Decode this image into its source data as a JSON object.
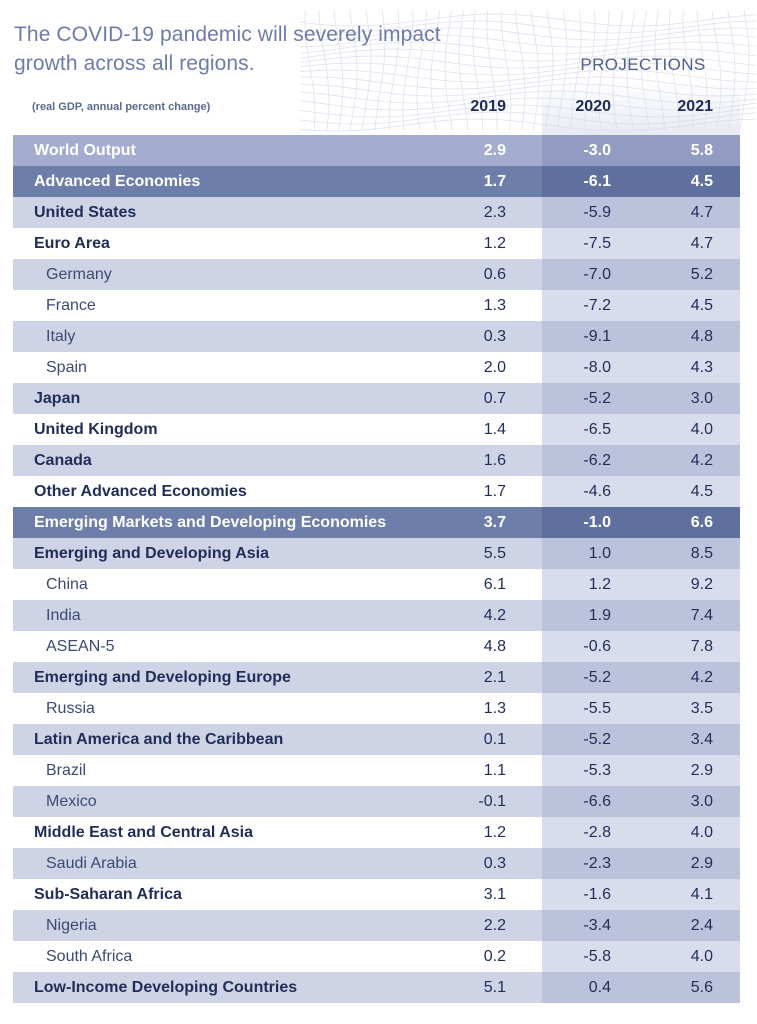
{
  "header": {
    "title_line1": "The COVID-19 pandemic will severely impact",
    "title_line2": "growth across all regions.",
    "projections_label": "PROJECTIONS",
    "unit_label": "(real GDP, annual percent change)",
    "years": [
      "2019",
      "2020",
      "2021"
    ]
  },
  "chart_data": {
    "type": "table",
    "title": "The COVID-19 pandemic will severely impact growth across all regions.",
    "subtitle": "(real GDP, annual percent change)",
    "columns": [
      "2019",
      "2020",
      "2021"
    ],
    "column_group": {
      "label": "PROJECTIONS",
      "columns": [
        "2020",
        "2021"
      ]
    },
    "rows": [
      {
        "name": "World Output",
        "level": 0,
        "style": "mid",
        "values": [
          "2.9",
          "-3.0",
          "5.8"
        ]
      },
      {
        "name": "Advanced Economies",
        "level": 0,
        "style": "dark",
        "values": [
          "1.7",
          "-6.1",
          "4.5"
        ]
      },
      {
        "name": "United States",
        "level": 0,
        "style": "light",
        "values": [
          "2.3",
          "-5.9",
          "4.7"
        ]
      },
      {
        "name": "Euro Area",
        "level": 0,
        "style": "white",
        "values": [
          "1.2",
          "-7.5",
          "4.7"
        ]
      },
      {
        "name": "Germany",
        "level": 1,
        "style": "light",
        "values": [
          "0.6",
          "-7.0",
          "5.2"
        ]
      },
      {
        "name": "France",
        "level": 1,
        "style": "white",
        "values": [
          "1.3",
          "-7.2",
          "4.5"
        ]
      },
      {
        "name": "Italy",
        "level": 1,
        "style": "light",
        "values": [
          "0.3",
          "-9.1",
          "4.8"
        ]
      },
      {
        "name": "Spain",
        "level": 1,
        "style": "white",
        "values": [
          "2.0",
          "-8.0",
          "4.3"
        ]
      },
      {
        "name": "Japan",
        "level": 0,
        "style": "light",
        "values": [
          "0.7",
          "-5.2",
          "3.0"
        ]
      },
      {
        "name": "United Kingdom",
        "level": 0,
        "style": "white",
        "values": [
          "1.4",
          "-6.5",
          "4.0"
        ]
      },
      {
        "name": "Canada",
        "level": 0,
        "style": "light",
        "values": [
          "1.6",
          "-6.2",
          "4.2"
        ]
      },
      {
        "name": "Other Advanced Economies",
        "level": 0,
        "style": "white",
        "values": [
          "1.7",
          "-4.6",
          "4.5"
        ]
      },
      {
        "name": "Emerging Markets and Developing Economies",
        "level": 0,
        "style": "dark",
        "values": [
          "3.7",
          "-1.0",
          "6.6"
        ]
      },
      {
        "name": "Emerging and Developing Asia",
        "level": 0,
        "style": "light",
        "values": [
          "5.5",
          "1.0",
          "8.5"
        ]
      },
      {
        "name": "China",
        "level": 1,
        "style": "white",
        "values": [
          "6.1",
          "1.2",
          "9.2"
        ]
      },
      {
        "name": "India",
        "level": 1,
        "style": "light",
        "values": [
          "4.2",
          "1.9",
          "7.4"
        ]
      },
      {
        "name": "ASEAN-5",
        "level": 1,
        "style": "white",
        "values": [
          "4.8",
          "-0.6",
          "7.8"
        ]
      },
      {
        "name": "Emerging and Developing Europe",
        "level": 0,
        "style": "light",
        "values": [
          "2.1",
          "-5.2",
          "4.2"
        ]
      },
      {
        "name": "Russia",
        "level": 1,
        "style": "white",
        "values": [
          "1.3",
          "-5.5",
          "3.5"
        ]
      },
      {
        "name": "Latin America and the Caribbean",
        "level": 0,
        "style": "light",
        "values": [
          "0.1",
          "-5.2",
          "3.4"
        ]
      },
      {
        "name": "Brazil",
        "level": 1,
        "style": "white",
        "values": [
          "1.1",
          "-5.3",
          "2.9"
        ]
      },
      {
        "name": "Mexico",
        "level": 1,
        "style": "light",
        "values": [
          "-0.1",
          "-6.6",
          "3.0"
        ]
      },
      {
        "name": "Middle East and Central Asia",
        "level": 0,
        "style": "white",
        "values": [
          "1.2",
          "-2.8",
          "4.0"
        ]
      },
      {
        "name": "Saudi Arabia",
        "level": 1,
        "style": "light",
        "values": [
          "0.3",
          "-2.3",
          "2.9"
        ]
      },
      {
        "name": "Sub-Saharan Africa",
        "level": 0,
        "style": "white",
        "values": [
          "3.1",
          "-1.6",
          "4.1"
        ]
      },
      {
        "name": "Nigeria",
        "level": 1,
        "style": "light",
        "values": [
          "2.2",
          "-3.4",
          "2.4"
        ]
      },
      {
        "name": "South Africa",
        "level": 1,
        "style": "white",
        "values": [
          "0.2",
          "-5.8",
          "4.0"
        ]
      },
      {
        "name": "Low-Income Developing Countries",
        "level": 0,
        "style": "light",
        "values": [
          "5.1",
          "0.4",
          "5.6"
        ]
      }
    ]
  },
  "colors": {
    "title": "#6d7bab",
    "text": "#1f2d57",
    "row_light": "#ced3e6",
    "row_dark": "#6e7eab",
    "row_mid": "#a4adcf"
  }
}
